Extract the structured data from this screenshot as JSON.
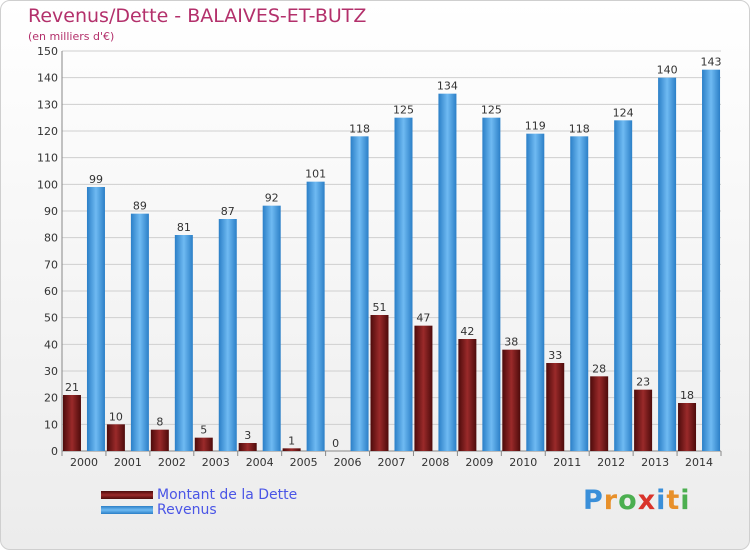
{
  "chart_data": {
    "type": "bar",
    "title": "Revenus/Dette - BALAIVES-ET-BUTZ",
    "subtitle": "(en milliers d'€)",
    "xlabel": "",
    "ylabel": "",
    "ylim": [
      0,
      150
    ],
    "ytick_step": 10,
    "grid": true,
    "legend_position": "bottom-left",
    "categories": [
      "2000",
      "2001",
      "2002",
      "2003",
      "2004",
      "2005",
      "2006",
      "2007",
      "2008",
      "2009",
      "2010",
      "2011",
      "2012",
      "2013",
      "2014"
    ],
    "series": [
      {
        "name": "Montant de la Dette",
        "color": "#7a1a1a",
        "values": [
          21,
          10,
          8,
          5,
          3,
          1,
          0,
          51,
          47,
          42,
          38,
          33,
          28,
          23,
          18
        ]
      },
      {
        "name": "Revenus",
        "color": "#4aa3e8",
        "values": [
          99,
          89,
          81,
          87,
          92,
          101,
          118,
          125,
          134,
          125,
          119,
          118,
          124,
          140,
          143
        ]
      }
    ]
  },
  "logo": {
    "text": "Proxiti",
    "letters": [
      "P",
      "r",
      "o",
      "x",
      "i",
      "t",
      "i"
    ],
    "colors": [
      "#3a8fd9",
      "#e8902a",
      "#4caf50",
      "#d9342b",
      "#3a8fd9",
      "#e8902a",
      "#4caf50"
    ]
  }
}
